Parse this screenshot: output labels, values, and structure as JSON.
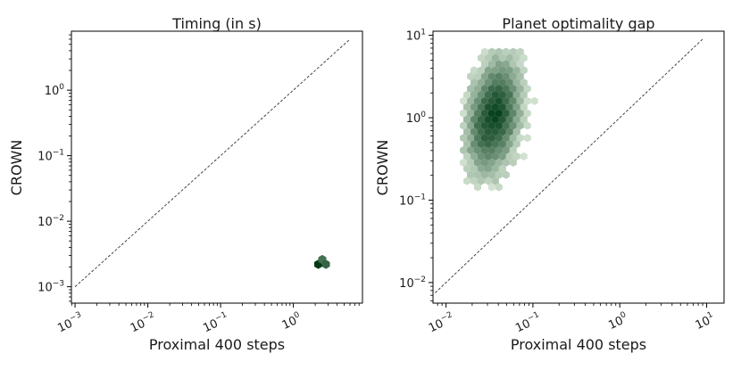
{
  "chart_data": [
    {
      "type": "hexbin",
      "title": "Timing (in s)",
      "xlabel": "Proximal 400 steps",
      "ylabel": "CROWN",
      "xscale": "log",
      "yscale": "log",
      "xlim_log10": [
        -3.05,
        0.95
      ],
      "ylim_log10": [
        -3.25,
        0.9
      ],
      "xticks": [
        {
          "base": "10",
          "exp": "−3"
        },
        {
          "base": "10",
          "exp": "−2"
        },
        {
          "base": "10",
          "exp": "−1"
        },
        {
          "base": "10",
          "exp": "0"
        }
      ],
      "yticks": [
        {
          "base": "10",
          "exp": "−3"
        },
        {
          "base": "10",
          "exp": "−2"
        },
        {
          "base": "10",
          "exp": "−1"
        },
        {
          "base": "10",
          "exp": "0"
        }
      ],
      "diagonal": {
        "from": 0.001,
        "to": 6.0,
        "style": "dashed",
        "color": "#333333"
      },
      "color_low": "#e9f5e6",
      "color_high": "#003a15",
      "hexbins": [
        {
          "x": 2.2,
          "y": 0.0022,
          "density": 1.0
        },
        {
          "x": 2.5,
          "y": 0.0026,
          "density": 0.55
        },
        {
          "x": 2.8,
          "y": 0.0022,
          "density": 0.65
        }
      ]
    },
    {
      "type": "hexbin",
      "title": "Planet optimality gap",
      "xlabel": "Proximal 400 steps",
      "ylabel": "CROWN",
      "xscale": "log",
      "yscale": "log",
      "xlim_log10": [
        -2.15,
        1.2
      ],
      "ylim_log10": [
        -2.25,
        1.05
      ],
      "xticks": [
        {
          "base": "10",
          "exp": "−2"
        },
        {
          "base": "10",
          "exp": "−1"
        },
        {
          "base": "10",
          "exp": "0"
        },
        {
          "base": "10",
          "exp": "1"
        }
      ],
      "yticks": [
        {
          "base": "10",
          "exp": "−2"
        },
        {
          "base": "10",
          "exp": "−1"
        },
        {
          "base": "10",
          "exp": "0"
        },
        {
          "base": "10",
          "exp": "1"
        }
      ],
      "diagonal": {
        "from": 0.0075,
        "to": 9.0,
        "style": "dashed",
        "color": "#333333"
      },
      "color_low": "#e9f5e6",
      "color_high": "#003a15",
      "density_blob": {
        "center_log10": [
          -1.45,
          0.02
        ],
        "spread_log10": [
          0.19,
          0.42
        ],
        "x_range_log10": [
          -1.8,
          -0.85
        ],
        "y_range_log10": [
          -1.5,
          0.8
        ]
      }
    }
  ]
}
